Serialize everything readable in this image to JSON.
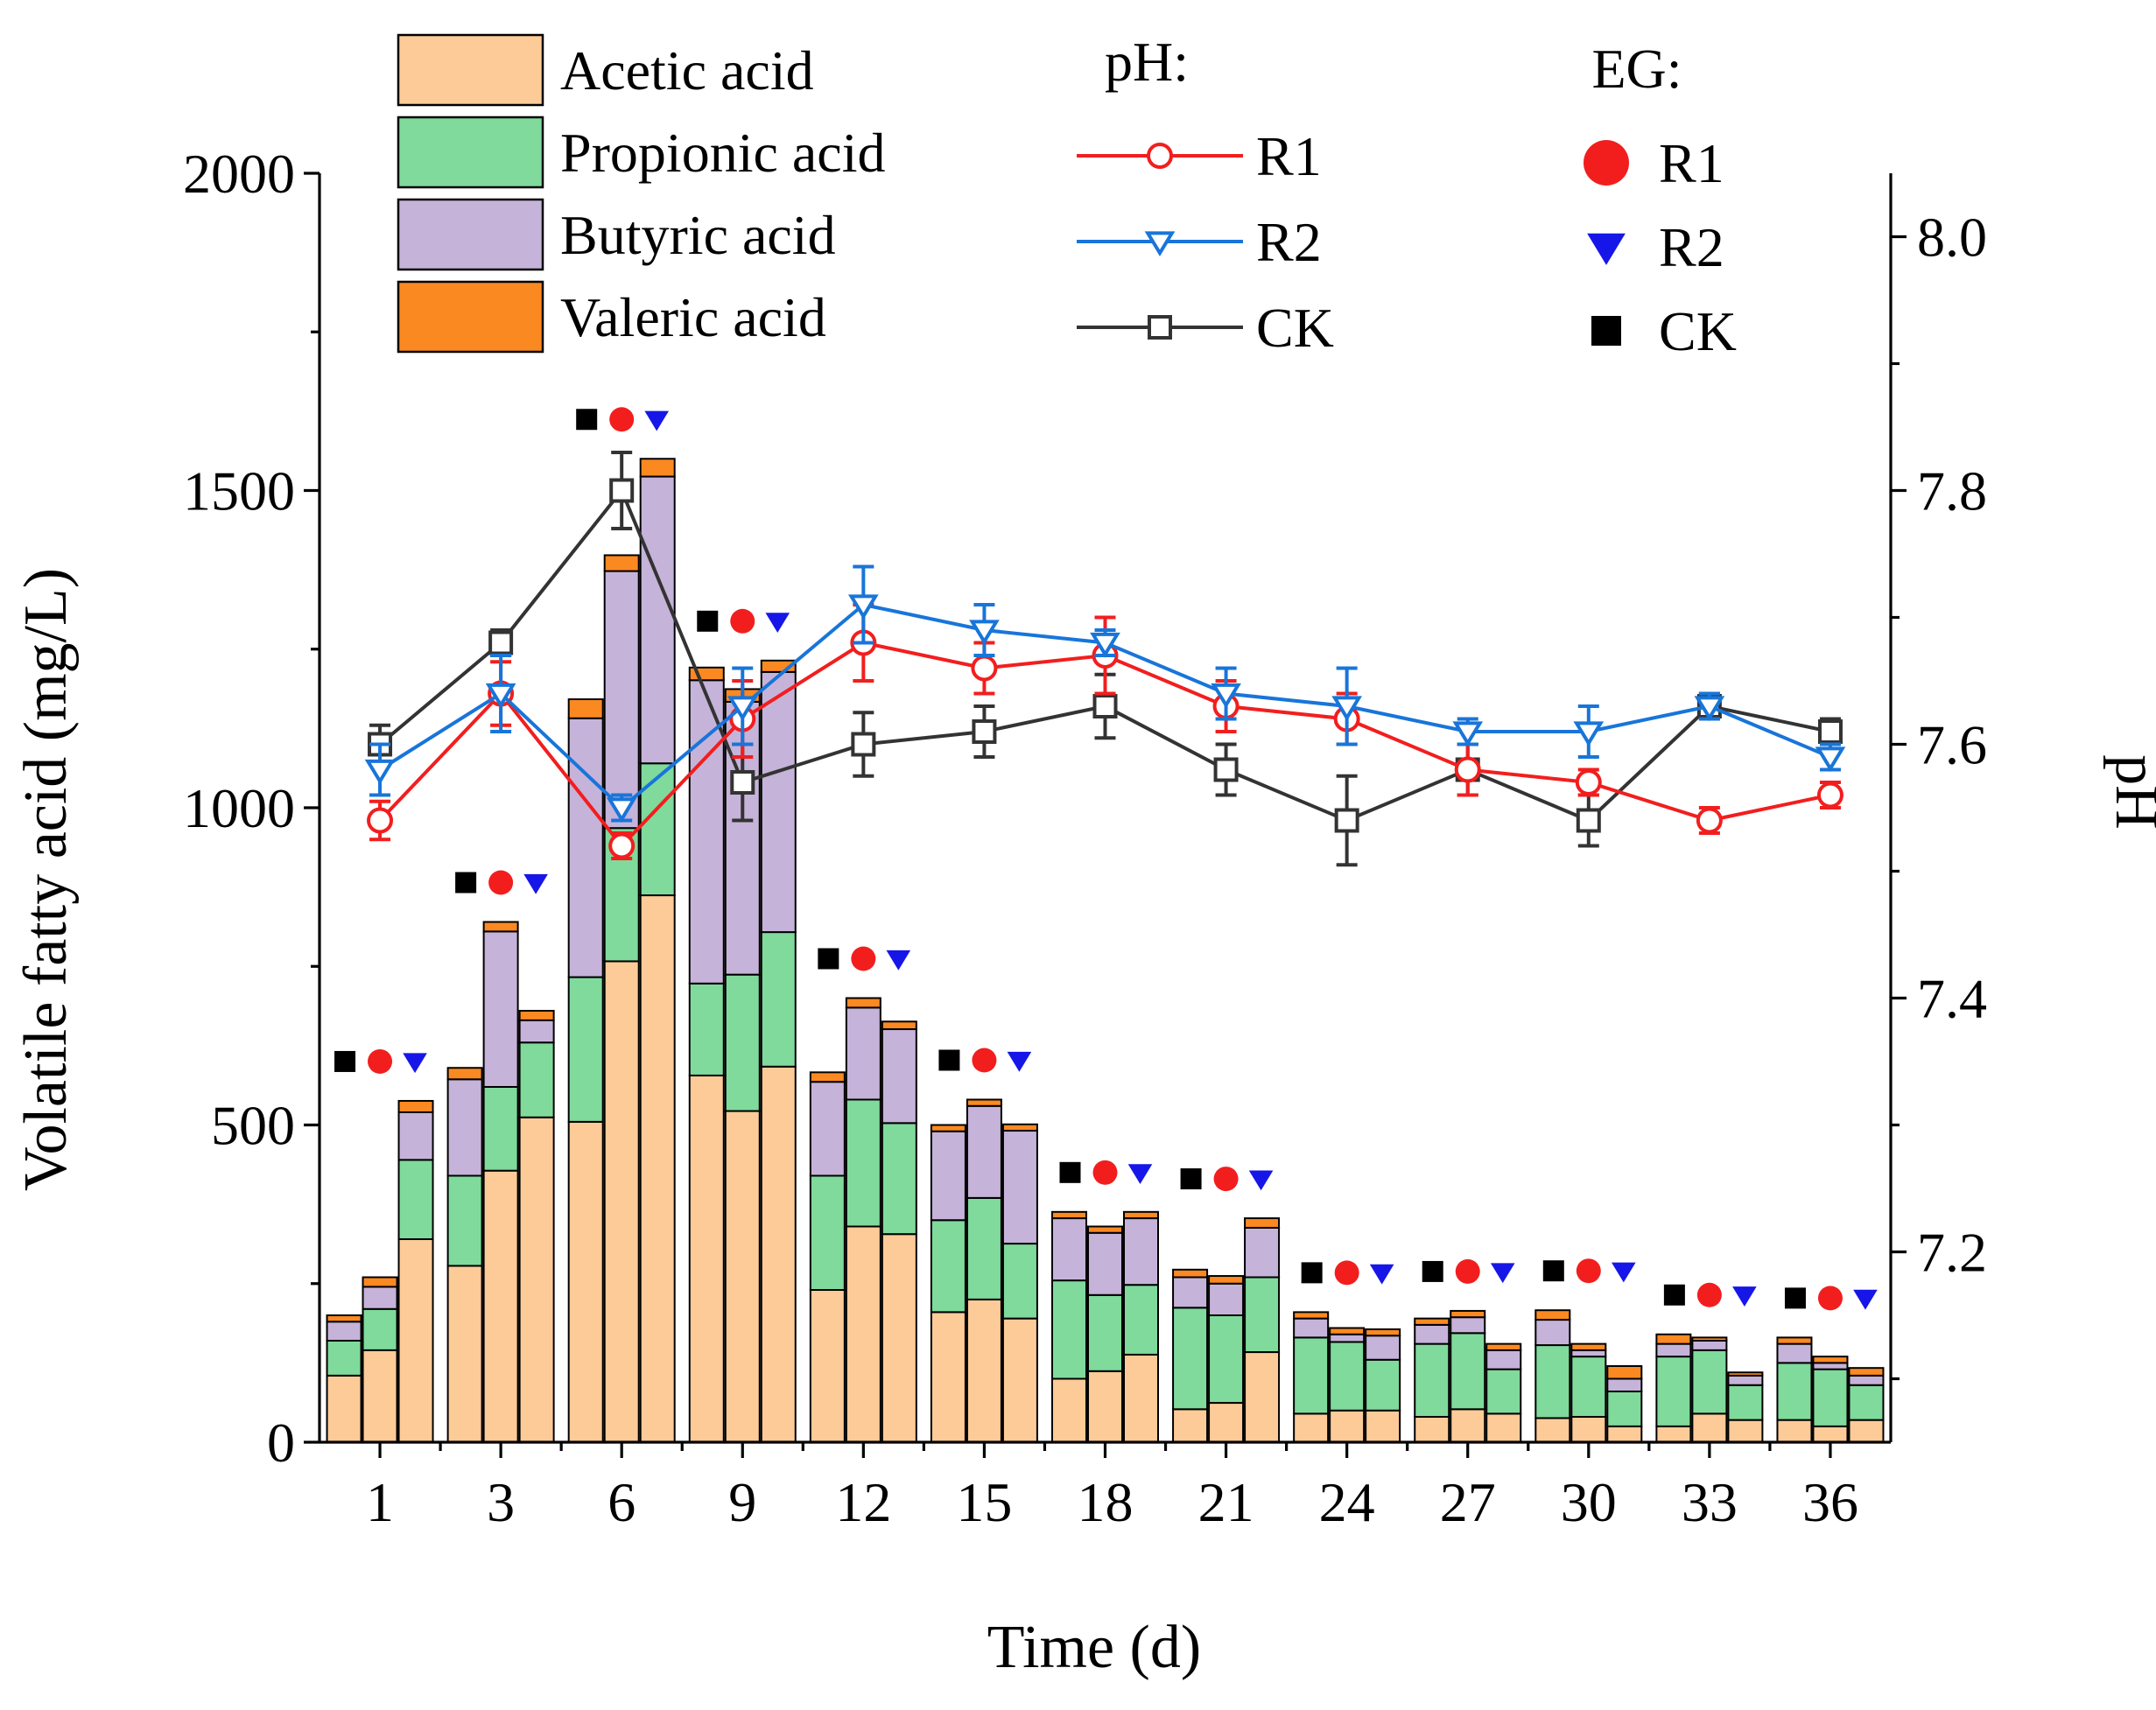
{
  "chart_data": {
    "type": "bar",
    "stacked": true,
    "categories": [
      "1",
      "3",
      "6",
      "9",
      "12",
      "15",
      "18",
      "21",
      "24",
      "27",
      "30",
      "33",
      "36"
    ],
    "groups": [
      "CK",
      "R1",
      "R2"
    ],
    "xlabel": "Time (d)",
    "ylabel": "Volatile fatty acid (mg/L)",
    "y2label": "pH",
    "ylim": [
      0,
      2000
    ],
    "yticks": [
      0,
      500,
      1000,
      1500,
      2000
    ],
    "y2lim": [
      7.05,
      8.05
    ],
    "y2ticks": [
      "7.2",
      "7.4",
      "7.6",
      "7.8",
      "8.0"
    ],
    "series": [
      {
        "name": "Acetic acid",
        "color": "#FDCB98",
        "values": [
          [
            105,
            145,
            320
          ],
          [
            278,
            428,
            512
          ],
          [
            505,
            758,
            862
          ],
          [
            578,
            522,
            592
          ],
          [
            240,
            340,
            328
          ],
          [
            205,
            225,
            195
          ],
          [
            100,
            112,
            138
          ],
          [
            52,
            62,
            142
          ],
          [
            45,
            50,
            50
          ],
          [
            40,
            52,
            45
          ],
          [
            38,
            40,
            25
          ],
          [
            25,
            45,
            35
          ],
          [
            35,
            25,
            35
          ]
        ]
      },
      {
        "name": "Propionic acid",
        "color": "#7FDA9C",
        "values": [
          [
            55,
            65,
            125
          ],
          [
            142,
            132,
            118
          ],
          [
            228,
            210,
            208
          ],
          [
            145,
            215,
            212
          ],
          [
            180,
            200,
            175
          ],
          [
            145,
            160,
            118
          ],
          [
            155,
            120,
            110
          ],
          [
            160,
            138,
            118
          ],
          [
            120,
            108,
            80
          ],
          [
            115,
            120,
            70
          ],
          [
            115,
            95,
            55
          ],
          [
            110,
            100,
            55
          ],
          [
            90,
            90,
            55
          ]
        ]
      },
      {
        "name": "Butyric acid",
        "color": "#C6B3D9",
        "values": [
          [
            30,
            35,
            75
          ],
          [
            152,
            245,
            35
          ],
          [
            408,
            405,
            452
          ],
          [
            478,
            430,
            410
          ],
          [
            148,
            145,
            148
          ],
          [
            140,
            145,
            178
          ],
          [
            98,
            98,
            105
          ],
          [
            48,
            50,
            78
          ],
          [
            30,
            12,
            38
          ],
          [
            30,
            25,
            30
          ],
          [
            40,
            10,
            20
          ],
          [
            20,
            15,
            15
          ],
          [
            30,
            10,
            15
          ]
        ]
      },
      {
        "name": "Valeric acid",
        "color": "#FB8921",
        "values": [
          [
            10,
            15,
            18
          ],
          [
            18,
            15,
            15
          ],
          [
            30,
            25,
            28
          ],
          [
            20,
            20,
            18
          ],
          [
            15,
            15,
            12
          ],
          [
            10,
            10,
            10
          ],
          [
            10,
            10,
            10
          ],
          [
            12,
            12,
            15
          ],
          [
            10,
            10,
            10
          ],
          [
            10,
            10,
            10
          ],
          [
            15,
            10,
            20
          ],
          [
            15,
            5,
            5
          ],
          [
            10,
            10,
            12
          ]
        ]
      }
    ],
    "ph_series": [
      {
        "name": "R1",
        "color": "#F21E1E",
        "marker": "circle",
        "values": [
          7.54,
          7.64,
          7.52,
          7.62,
          7.68,
          7.66,
          7.67,
          7.63,
          7.62,
          7.58,
          7.57,
          7.54,
          7.56
        ],
        "errors": [
          0.015,
          0.025,
          0.01,
          0.03,
          0.03,
          0.02,
          0.03,
          0.02,
          0.02,
          0.02,
          0.01,
          0.01,
          0.01
        ]
      },
      {
        "name": "R2",
        "color": "#1875D9",
        "marker": "triangle-down",
        "values": [
          7.58,
          7.64,
          7.55,
          7.63,
          7.71,
          7.69,
          7.68,
          7.64,
          7.63,
          7.61,
          7.61,
          7.63,
          7.59
        ],
        "errors": [
          0.02,
          0.03,
          0.01,
          0.03,
          0.03,
          0.02,
          0.01,
          0.02,
          0.03,
          0.01,
          0.02,
          0.01,
          0.01
        ]
      },
      {
        "name": "CK",
        "color": "#333333",
        "marker": "square",
        "values": [
          7.6,
          7.68,
          7.8,
          7.57,
          7.6,
          7.61,
          7.63,
          7.58,
          7.54,
          7.58,
          7.54,
          7.63,
          7.61
        ],
        "errors": [
          0.015,
          0.01,
          0.03,
          0.03,
          0.025,
          0.02,
          0.025,
          0.02,
          0.035,
          0.02,
          0.02,
          0.01,
          0.01
        ]
      }
    ],
    "eg_markers": [
      {
        "name": "CK",
        "color": "#000000",
        "marker": "square"
      },
      {
        "name": "R1",
        "color": "#F21E1E",
        "marker": "circle"
      },
      {
        "name": "R2",
        "color": "#1616E8",
        "marker": "triangle-down"
      }
    ],
    "legend": {
      "ph_title": "pH:",
      "eg_title": "EG:",
      "placement": "top"
    }
  }
}
